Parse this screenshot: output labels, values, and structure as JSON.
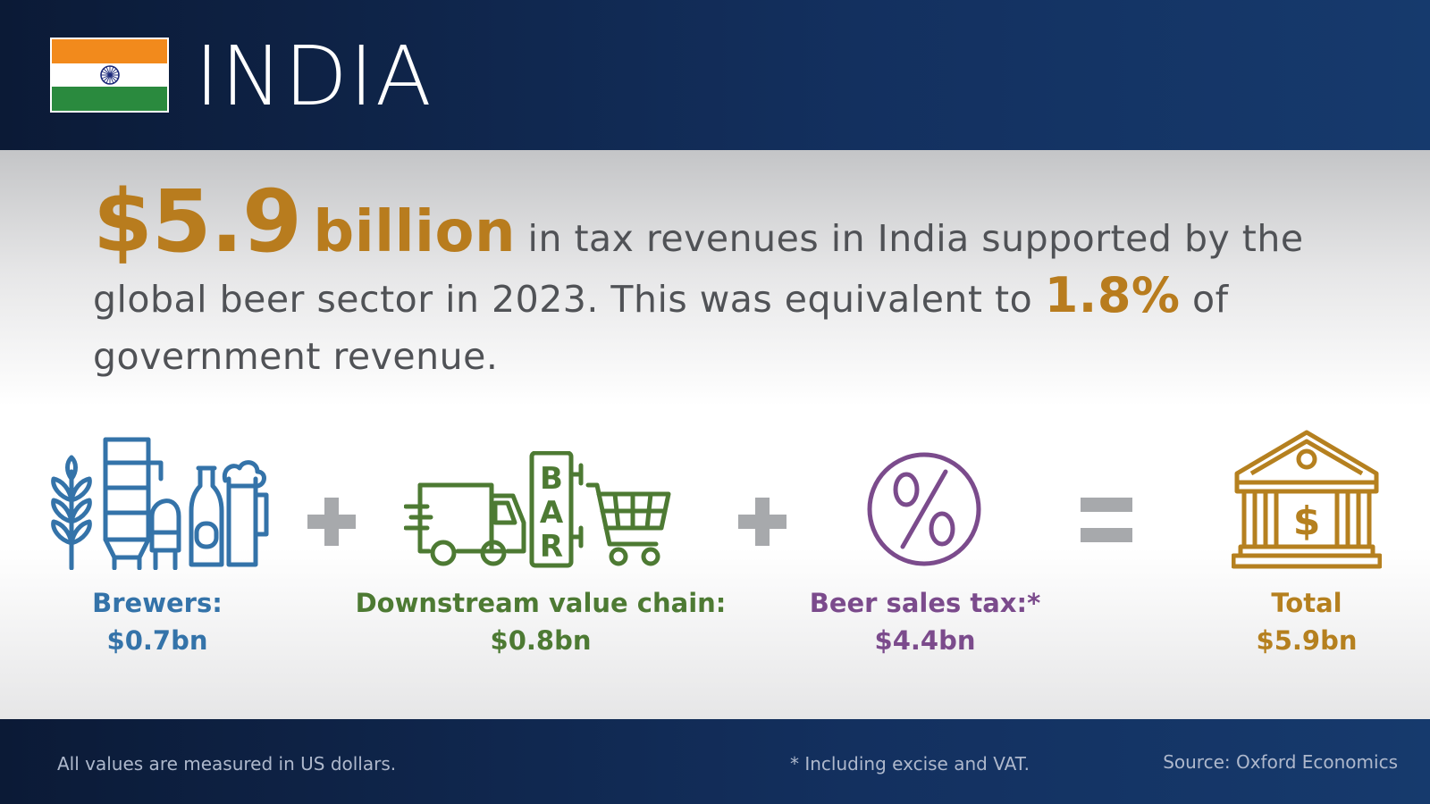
{
  "header": {
    "country": "INDIA"
  },
  "headline": {
    "amount": "$5.9",
    "unit": "billion",
    "text1": "in tax revenues in India supported by the global beer sector in 2023. This was equivalent to",
    "pct": "1.8%",
    "text2": "of government revenue."
  },
  "components": [
    {
      "name": "Brewers:",
      "value": "$0.7bn",
      "icon": "brewery-icon",
      "color": "#3473a9"
    },
    {
      "name": "Downstream value chain:",
      "value": "$0.8bn",
      "icon": "truck-bar-cart-icon",
      "color": "#4d7a33"
    },
    {
      "name": "Beer sales tax:*",
      "value": "$4.4bn",
      "icon": "percent-icon",
      "color": "#7b4b8c"
    },
    {
      "name": "Total",
      "value": "$5.9bn",
      "icon": "bank-icon",
      "color": "#b5801f"
    }
  ],
  "operators": [
    "plus-icon",
    "plus-icon",
    "equals-icon"
  ],
  "footer": {
    "note": "All values are measured in US dollars.",
    "asterisk": "* Including excise and VAT.",
    "source": "Source: Oxford Economics"
  },
  "colors": {
    "navy": "#13305f",
    "gold": "#b87c1e",
    "grey_text": "#505256"
  }
}
